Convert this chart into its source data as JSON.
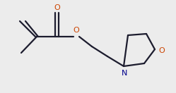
{
  "bg_color": "#ececec",
  "line_color": "#1c1c2e",
  "O_color": "#cc4400",
  "N_color": "#00008b",
  "line_width": 1.6,
  "figsize": [
    2.49,
    1.32
  ],
  "dpi": 100,
  "O_label": "O",
  "N_label": "N"
}
